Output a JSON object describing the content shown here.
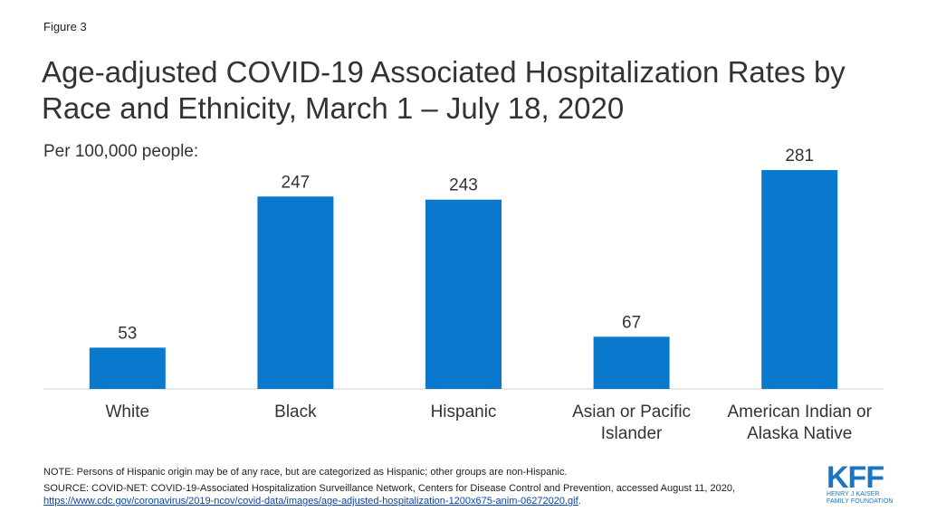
{
  "figure_label": "Figure 3",
  "chart_data": {
    "type": "bar",
    "title": "Age-adjusted COVID-19 Associated Hospitalization Rates by Race and Ethnicity, March 1 – July 18, 2020",
    "subtitle": "Per 100,000 people:",
    "categories": [
      [
        "White"
      ],
      [
        "Black"
      ],
      [
        "Hispanic"
      ],
      [
        "Asian or Pacific",
        "Islander"
      ],
      [
        "American Indian or",
        "Alaska Native"
      ]
    ],
    "values": [
      53,
      247,
      243,
      67,
      281
    ],
    "data_labels": [
      "53",
      "247",
      "243",
      "67",
      "281"
    ],
    "bar_color": "#0a78cc",
    "ylim": [
      0,
      281
    ],
    "grid": false
  },
  "note": "NOTE: Persons of Hispanic origin may be of any race, but are categorized as Hispanic; other groups are non-Hispanic.",
  "source": {
    "prefix": "SOURCE: COVID-NET: COVID-19-Associated Hospitalization Surveillance Network, Centers for Disease Control and Prevention, accessed August 11, 2020,",
    "url": "https://www.cdc.gov/coronavirus/2019-ncov/covid-data/images/age-adjusted-hospitalization-1200x675-anim-06272020.gif",
    "suffix": "."
  },
  "logo": {
    "mark": "KFF",
    "line1": "HENRY J KAISER",
    "line2": "FAMILY FOUNDATION",
    "color": "#1a75c2"
  }
}
